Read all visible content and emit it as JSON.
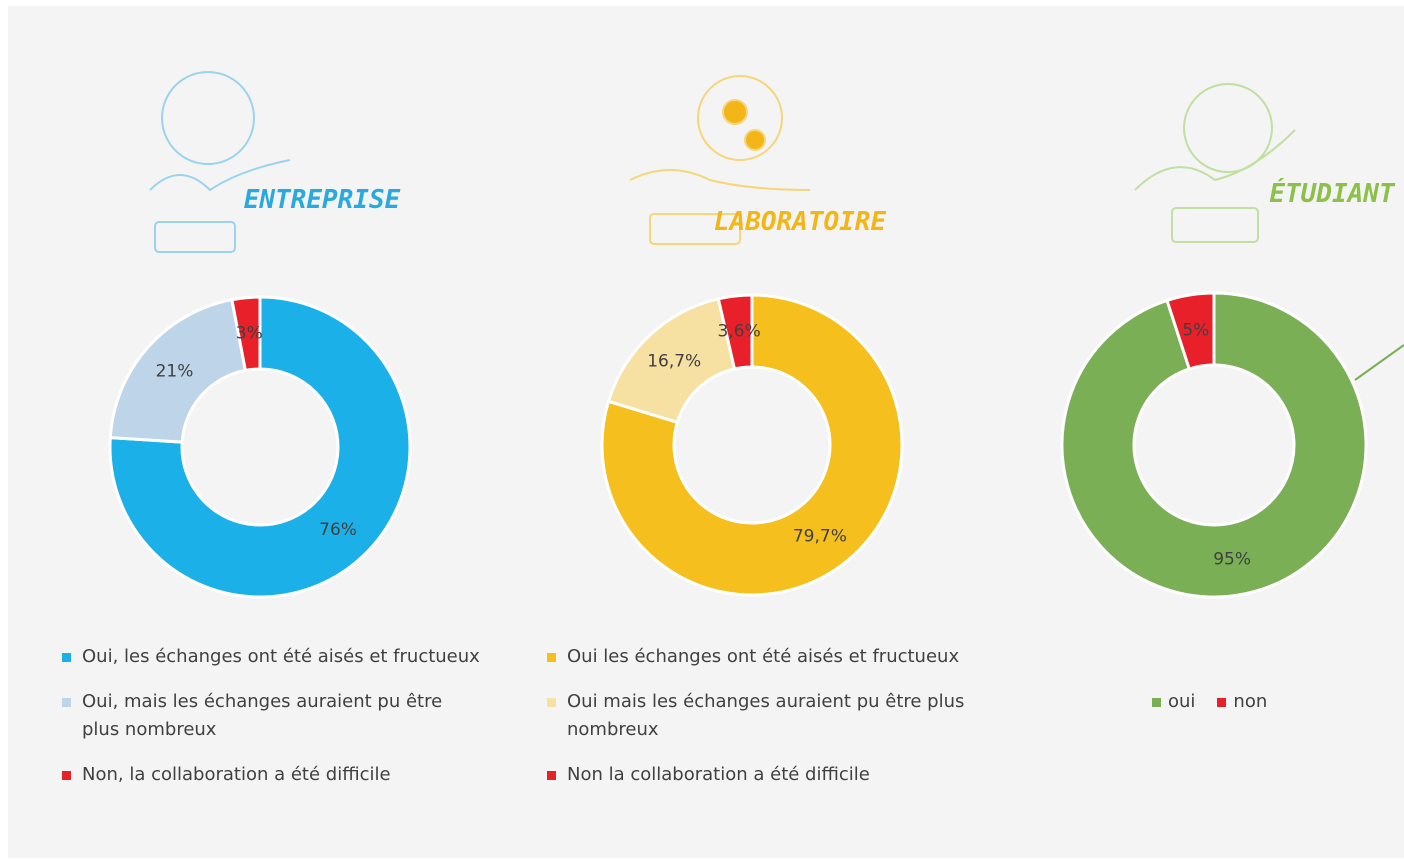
{
  "chart_data": [
    {
      "type": "donut",
      "title": "ENTREPRISE",
      "categories": [
        "Oui, les échanges ont été aisés et fructueux",
        "Oui, mais les échanges auraient pu être plus nombreux",
        "Non, la collaboration a été difficile"
      ],
      "values": [
        76,
        21,
        3
      ],
      "value_labels": [
        "76%",
        "21%",
        "3%"
      ],
      "colors": [
        "#1cb0e8",
        "#bed4e8",
        "#e8202a"
      ],
      "title_color": "#29a9dd",
      "legend": "bottom"
    },
    {
      "type": "donut",
      "title": "LABORATOIRE",
      "categories": [
        "Oui les échanges ont été aisés et fructueux",
        "Oui mais les échanges auraient pu être plus nombreux",
        "Non la collaboration a été difficile"
      ],
      "values": [
        79.7,
        16.7,
        3.6
      ],
      "value_labels": [
        "79,7%",
        "16,7%",
        "3,6%"
      ],
      "colors": [
        "#f5bf1e",
        "#f6e1a3",
        "#e8202a"
      ],
      "title_color": "#f2b619",
      "legend": "bottom"
    },
    {
      "type": "donut",
      "title": "ÉTUDIANT",
      "categories": [
        "oui",
        "non"
      ],
      "values": [
        95,
        5
      ],
      "value_labels": [
        "95%",
        "5%"
      ],
      "colors": [
        "#7aaf55",
        "#e8202a"
      ],
      "title_color": "#8cc04a",
      "legend": "bottom"
    }
  ]
}
